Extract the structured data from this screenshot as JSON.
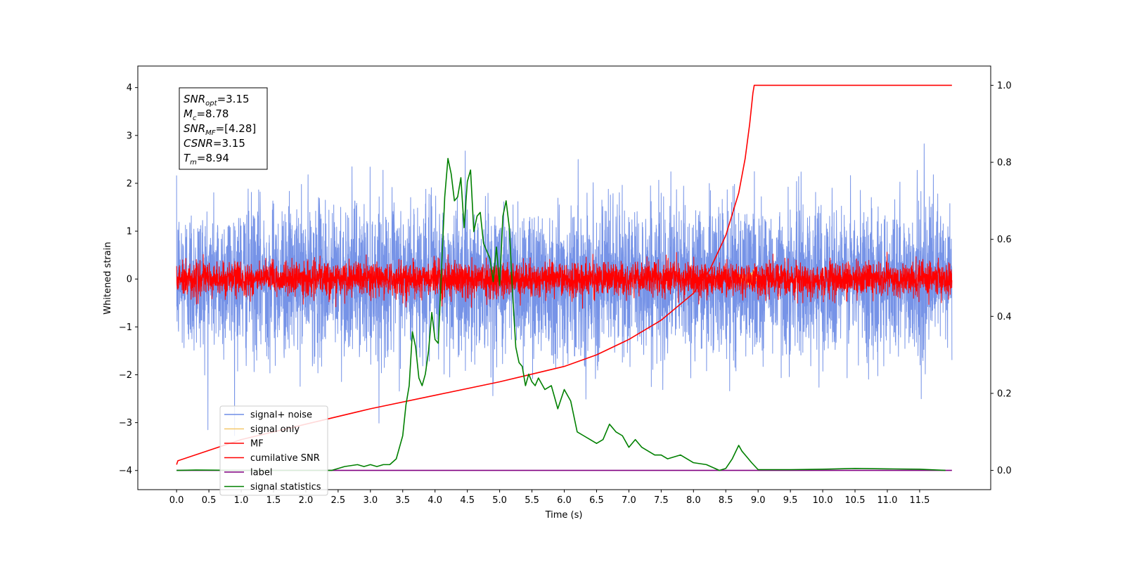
{
  "chart_data": {
    "type": "line",
    "xlabel": "Time (s)",
    "ylabel": "Whitened strain",
    "xlim": [
      -0.6,
      12.6
    ],
    "ylim": [
      -4.4,
      4.45
    ],
    "y2lim": [
      -0.05,
      1.05
    ],
    "x_ticks": [
      0.0,
      0.5,
      1.0,
      1.5,
      2.0,
      2.5,
      3.0,
      3.5,
      4.0,
      4.5,
      5.0,
      5.5,
      6.0,
      6.5,
      7.0,
      7.5,
      8.0,
      8.5,
      9.0,
      9.5,
      10.0,
      10.5,
      11.0,
      11.5
    ],
    "x_tick_labels": [
      "0.0",
      "0.5",
      "1.0",
      "1.5",
      "2.0",
      "2.5",
      "3.0",
      "3.5",
      "4.0",
      "4.5",
      "5.0",
      "5.5",
      "6.0",
      "6.5",
      "7.0",
      "7.5",
      "8.0",
      "8.5",
      "9.0",
      "9.5",
      "10.0",
      "10.5",
      "11.0",
      "11.5"
    ],
    "y_ticks": [
      -4,
      -3,
      -2,
      -1,
      0,
      1,
      2,
      3,
      4
    ],
    "y_tick_labels": [
      "−4",
      "−3",
      "−2",
      "−1",
      "0",
      "1",
      "2",
      "3",
      "4"
    ],
    "y2_ticks": [
      0.0,
      0.2,
      0.4,
      0.6,
      0.8,
      1.0
    ],
    "y2_tick_labels": [
      "0.0",
      "0.2",
      "0.4",
      "0.6",
      "0.8",
      "1.0"
    ],
    "legend_position": "lower-left",
    "grid": false,
    "annotation": {
      "lines": [
        {
          "main": "SNR",
          "sub": "opt",
          "value": "=3.15"
        },
        {
          "main": "M",
          "sub": "c",
          "value": "=8.78"
        },
        {
          "main": "SNR",
          "sub": "MF",
          "value": "=[4.28]"
        },
        {
          "main": "CSNR",
          "sub": "",
          "value": "=3.15"
        },
        {
          "main": "T",
          "sub": "m",
          "value": "=8.94"
        }
      ]
    },
    "series": [
      {
        "name": "signal+ noise",
        "color": "#6f8de6",
        "axis": "left",
        "kind": "noise",
        "sigma": 0.78,
        "t_end": 12.0
      },
      {
        "name": "signal only",
        "color": "#f5c86a",
        "axis": "left",
        "kind": "chirp",
        "t_merge": 8.94
      },
      {
        "name": "MF",
        "color": "#ff0000",
        "axis": "left",
        "kind": "noise",
        "sigma": 0.17,
        "t_end": 12.0
      },
      {
        "name": "cumilative SNR",
        "color": "#ff0000",
        "axis": "right",
        "x": [
          0.0,
          0.02,
          1.0,
          2.0,
          3.0,
          4.0,
          5.0,
          6.0,
          6.5,
          7.0,
          7.5,
          8.0,
          8.25,
          8.5,
          8.7,
          8.8,
          8.87,
          8.92,
          8.94,
          12.0
        ],
        "y": [
          0.015,
          0.025,
          0.08,
          0.12,
          0.16,
          0.195,
          0.23,
          0.27,
          0.3,
          0.34,
          0.39,
          0.46,
          0.52,
          0.61,
          0.72,
          0.81,
          0.9,
          0.98,
          1.0,
          1.0
        ]
      },
      {
        "name": "label",
        "color": "#800080",
        "axis": "right",
        "x": [
          0.0,
          12.0
        ],
        "y": [
          0.0,
          0.0
        ]
      },
      {
        "name": "signal statistics",
        "color": "#008000",
        "axis": "right",
        "x": [
          0.0,
          0.3,
          1.0,
          1.5,
          2.0,
          2.4,
          2.6,
          2.8,
          2.9,
          3.0,
          3.1,
          3.2,
          3.3,
          3.4,
          3.5,
          3.55,
          3.6,
          3.65,
          3.7,
          3.75,
          3.8,
          3.85,
          3.9,
          3.95,
          4.0,
          4.05,
          4.1,
          4.15,
          4.2,
          4.25,
          4.3,
          4.35,
          4.4,
          4.45,
          4.5,
          4.55,
          4.6,
          4.65,
          4.7,
          4.75,
          4.8,
          4.85,
          4.9,
          4.95,
          5.0,
          5.05,
          5.1,
          5.15,
          5.2,
          5.25,
          5.3,
          5.35,
          5.4,
          5.45,
          5.5,
          5.55,
          5.6,
          5.7,
          5.8,
          5.9,
          6.0,
          6.1,
          6.2,
          6.3,
          6.4,
          6.5,
          6.6,
          6.7,
          6.8,
          6.9,
          7.0,
          7.1,
          7.2,
          7.3,
          7.4,
          7.5,
          7.6,
          7.8,
          8.0,
          8.2,
          8.4,
          8.5,
          8.6,
          8.7,
          8.75,
          8.8,
          8.9,
          9.0,
          9.5,
          10.0,
          10.5,
          11.0,
          11.5,
          11.9
        ],
        "y": [
          0.0,
          0.001,
          0.0,
          0.0,
          0.0,
          0.0,
          0.01,
          0.015,
          0.01,
          0.015,
          0.01,
          0.015,
          0.015,
          0.03,
          0.09,
          0.17,
          0.22,
          0.36,
          0.32,
          0.24,
          0.22,
          0.25,
          0.31,
          0.41,
          0.34,
          0.33,
          0.52,
          0.71,
          0.81,
          0.77,
          0.7,
          0.71,
          0.76,
          0.63,
          0.75,
          0.78,
          0.62,
          0.66,
          0.67,
          0.59,
          0.57,
          0.55,
          0.49,
          0.58,
          0.48,
          0.66,
          0.7,
          0.63,
          0.46,
          0.32,
          0.28,
          0.27,
          0.22,
          0.25,
          0.23,
          0.22,
          0.24,
          0.21,
          0.22,
          0.16,
          0.21,
          0.18,
          0.1,
          0.09,
          0.08,
          0.07,
          0.08,
          0.12,
          0.1,
          0.09,
          0.06,
          0.08,
          0.06,
          0.05,
          0.04,
          0.04,
          0.03,
          0.04,
          0.02,
          0.015,
          0.0,
          0.005,
          0.03,
          0.065,
          0.05,
          0.04,
          0.02,
          0.002,
          0.002,
          0.003,
          0.005,
          0.004,
          0.003,
          0.0
        ]
      }
    ]
  }
}
